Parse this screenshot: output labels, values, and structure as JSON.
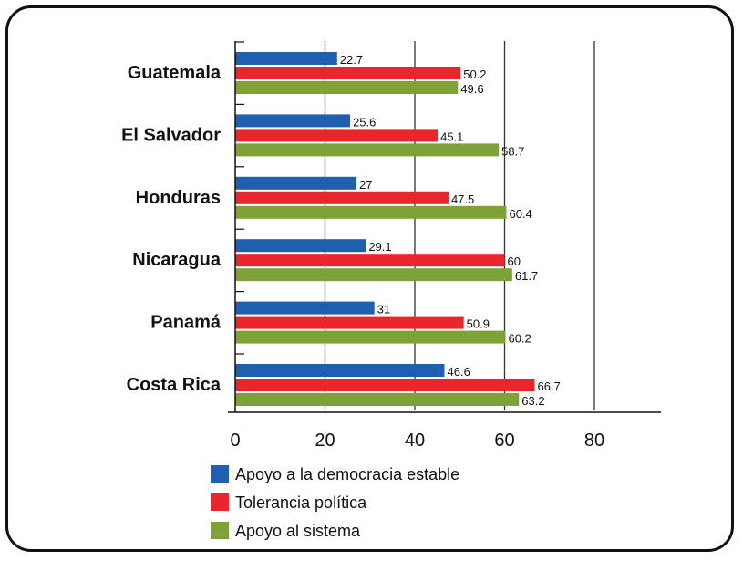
{
  "chart_data": {
    "type": "bar",
    "orientation": "horizontal",
    "categories": [
      "Guatemala",
      "El Salvador",
      "Honduras",
      "Nicaragua",
      "Panamá",
      "Costa Rica"
    ],
    "series": [
      {
        "name": "Apoyo a la democracia estable",
        "color": "#1f5fb0",
        "values": [
          22.7,
          25.6,
          27,
          29.1,
          31,
          46.6
        ],
        "labels": [
          "22.7",
          "25.6",
          "27",
          "29.1",
          "31",
          "46.6"
        ]
      },
      {
        "name": "Tolerancia política",
        "color": "#e8262c",
        "values": [
          50.2,
          45.1,
          47.5,
          60,
          50.9,
          66.7
        ],
        "labels": [
          "50.2",
          "45.1",
          "47.5",
          "60",
          "50.9",
          "66.7"
        ]
      },
      {
        "name": "Apoyo al sistema",
        "color": "#7fa237",
        "values": [
          49.6,
          58.7,
          60.4,
          61.7,
          60.2,
          63.2
        ],
        "labels": [
          "49.6",
          "58.7",
          "60.4",
          "61.7",
          "60.2",
          "63.2"
        ]
      }
    ],
    "xticks": [
      "0",
      "20",
      "40",
      "60",
      "80"
    ],
    "xlim": [
      0,
      96
    ],
    "grid": "vertical",
    "legend": "bottom-left"
  }
}
